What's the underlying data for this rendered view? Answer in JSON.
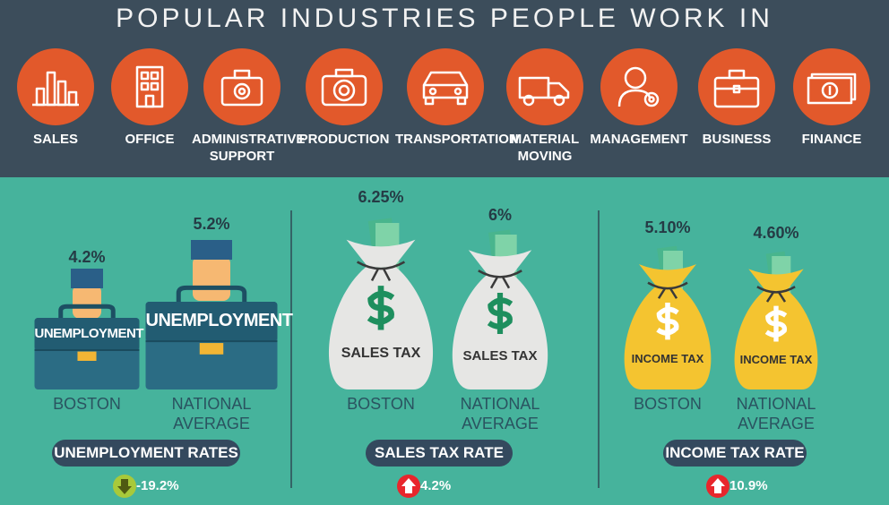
{
  "header": {
    "title": "POPULAR INDUSTRIES PEOPLE WORK IN"
  },
  "industries": [
    {
      "label": "SALES"
    },
    {
      "label": "OFFICE"
    },
    {
      "label": "ADMINISTRATIVE SUPPORT"
    },
    {
      "label": "PRODUCTION"
    },
    {
      "label": "TRANSPORTATION"
    },
    {
      "label": "MATERIAL MOVING"
    },
    {
      "label": "MANAGEMENT"
    },
    {
      "label": "BUSINESS"
    },
    {
      "label": "FINANCE"
    }
  ],
  "panels": [
    {
      "title": "UNEMPLOYMENT RATES",
      "change": "-19.2%",
      "direction": "down",
      "items": [
        {
          "value_label": "4.2%",
          "object_label": "UNEMPLOYMENT",
          "name": "BOSTON"
        },
        {
          "value_label": "5.2%",
          "object_label": "UNEMPLOYMENT",
          "name": "NATIONAL AVERAGE"
        }
      ]
    },
    {
      "title": "SALES TAX RATE",
      "change": "4.2%",
      "direction": "up",
      "items": [
        {
          "value_label": "6.25%",
          "object_label": "SALES TAX",
          "name": "BOSTON"
        },
        {
          "value_label": "6%",
          "object_label": "SALES TAX",
          "name": "NATIONAL AVERAGE"
        }
      ]
    },
    {
      "title": "INCOME TAX RATE",
      "change": "10.9%",
      "direction": "up",
      "items": [
        {
          "value_label": "5.10%",
          "object_label": "INCOME TAX",
          "name": "BOSTON"
        },
        {
          "value_label": "4.60%",
          "object_label": "INCOME TAX",
          "name": "NATIONAL AVERAGE"
        }
      ]
    }
  ]
}
